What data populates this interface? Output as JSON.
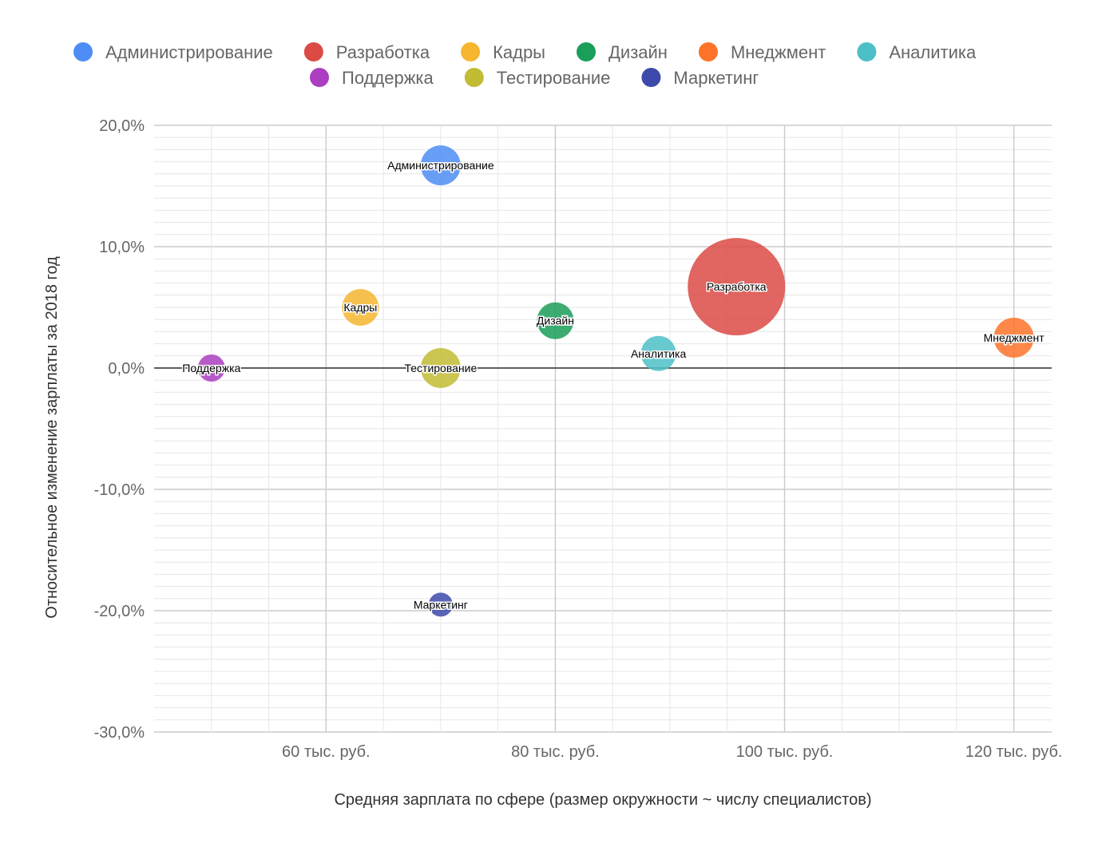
{
  "chart_data": {
    "type": "bubble",
    "xlabel": "Средняя зарплата по сфере (размер окружности ~ числу специалистов)",
    "ylabel": "Относительное изменение зарплаты за 2018 год",
    "xlim": [
      45,
      123.3
    ],
    "ylim": [
      -30,
      20
    ],
    "x_ticks": [
      {
        "v": 60,
        "label": "60 тыс. руб."
      },
      {
        "v": 80,
        "label": "80 тыс. руб."
      },
      {
        "v": 100,
        "label": "100 тыс. руб."
      },
      {
        "v": 120,
        "label": "120 тыс. руб."
      }
    ],
    "y_ticks": [
      {
        "v": 20,
        "label": "20,0%"
      },
      {
        "v": 10,
        "label": "10,0%"
      },
      {
        "v": 0,
        "label": "0,0%"
      },
      {
        "v": -10,
        "label": "-10,0%"
      },
      {
        "v": -20,
        "label": "-20,0%"
      },
      {
        "v": -30,
        "label": "-30,0%"
      }
    ],
    "grid": true,
    "legend_position": "top",
    "points": [
      {
        "name": "Администрирование",
        "x": 70,
        "y": 16.7,
        "size": 25,
        "color": "#4e8df5"
      },
      {
        "name": "Разработка",
        "x": 95.8,
        "y": 6.7,
        "size": 61,
        "color": "#dc4a44"
      },
      {
        "name": "Кадры",
        "x": 63,
        "y": 5.0,
        "size": 23,
        "color": "#f5b630"
      },
      {
        "name": "Дизайн",
        "x": 80,
        "y": 3.9,
        "size": 23,
        "color": "#1b9e5a"
      },
      {
        "name": "Мнеджмент",
        "x": 120,
        "y": 2.5,
        "size": 25,
        "color": "#fd7329"
      },
      {
        "name": "Аналитика",
        "x": 89,
        "y": 1.2,
        "size": 22,
        "color": "#4dbfc7"
      },
      {
        "name": "Поддержка",
        "x": 50,
        "y": 0,
        "size": 17,
        "color": "#ab3ec1"
      },
      {
        "name": "Тестирование",
        "x": 70,
        "y": 0,
        "size": 25,
        "color": "#c2bb34"
      },
      {
        "name": "Маркетинг",
        "x": 70,
        "y": -19.5,
        "size": 15,
        "color": "#3e4aab"
      }
    ]
  }
}
